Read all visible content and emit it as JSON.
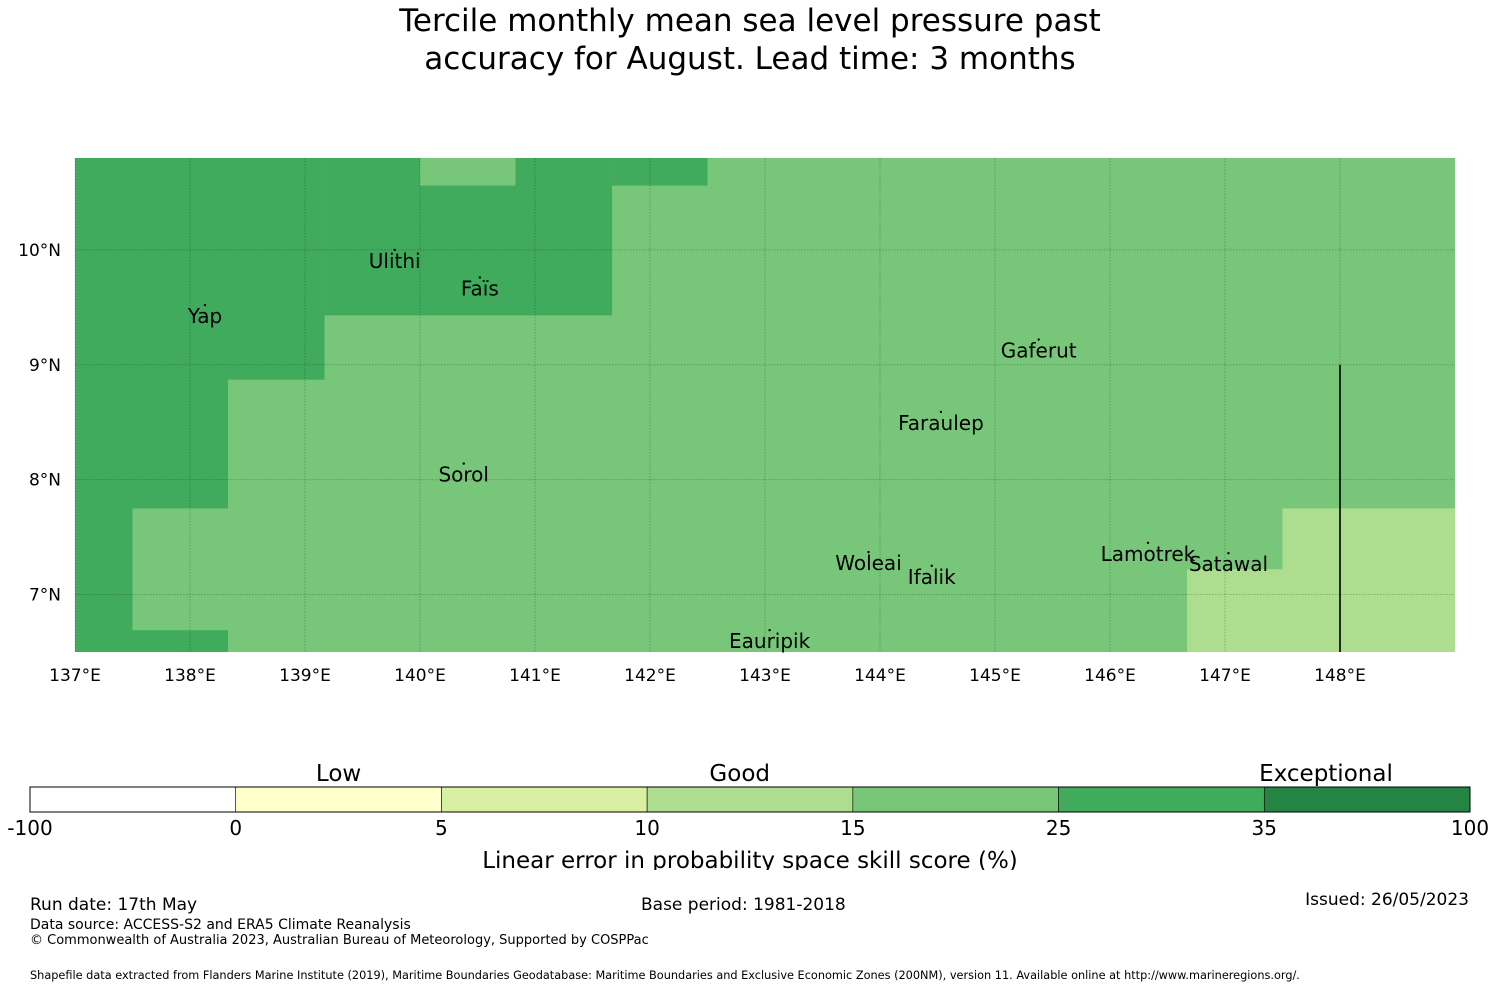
{
  "title": {
    "line1": "Tercile monthly mean sea level pressure past",
    "line2": "accuracy for August. Lead time: 3 months"
  },
  "map": {
    "lon_range": [
      137.0,
      149.0
    ],
    "lat_range": [
      6.5,
      10.8
    ],
    "lon_ticks": [
      {
        "value": 137,
        "label": "137°E"
      },
      {
        "value": 138,
        "label": "138°E"
      },
      {
        "value": 139,
        "label": "139°E"
      },
      {
        "value": 140,
        "label": "140°E"
      },
      {
        "value": 141,
        "label": "141°E"
      },
      {
        "value": 142,
        "label": "142°E"
      },
      {
        "value": 143,
        "label": "143°E"
      },
      {
        "value": 144,
        "label": "144°E"
      },
      {
        "value": 145,
        "label": "145°E"
      },
      {
        "value": 146,
        "label": "146°E"
      },
      {
        "value": 147,
        "label": "147°E"
      },
      {
        "value": 148,
        "label": "148°E"
      }
    ],
    "lat_ticks": [
      {
        "value": 10,
        "label": "10°N"
      },
      {
        "value": 9,
        "label": "9°N"
      },
      {
        "value": 8,
        "label": "8°N"
      },
      {
        "value": 7,
        "label": "7°N"
      }
    ],
    "gridlines": true,
    "skill_regions": [
      {
        "lon": [
          137.0,
          149.0
        ],
        "lat": [
          6.5,
          10.8
        ],
        "category": "15-25"
      },
      {
        "lon": [
          137.0,
          138.33
        ],
        "lat": [
          6.5,
          10.8
        ],
        "category": "25-35"
      },
      {
        "lon": [
          138.33,
          139.17
        ],
        "lat": [
          8.87,
          10.8
        ],
        "category": "25-35"
      },
      {
        "lon": [
          139.17,
          141.67
        ],
        "lat": [
          9.43,
          10.8
        ],
        "category": "25-35"
      },
      {
        "lon": [
          141.67,
          142.5
        ],
        "lat": [
          10.56,
          10.8
        ],
        "category": "25-35"
      },
      {
        "lon": [
          140.0,
          140.83
        ],
        "lat": [
          10.56,
          10.8
        ],
        "category": "15-25"
      },
      {
        "lon": [
          137.5,
          138.33
        ],
        "lat": [
          6.69,
          7.75
        ],
        "category": "15-25"
      },
      {
        "lon": [
          146.67,
          147.5
        ],
        "lat": [
          6.5,
          7.22
        ],
        "category": "10-15"
      },
      {
        "lon": [
          147.5,
          149.0
        ],
        "lat": [
          6.5,
          7.75
        ],
        "category": "10-15"
      }
    ],
    "boundary_line": {
      "lon": 148.0,
      "lat": [
        6.5,
        9.0
      ]
    },
    "islands": [
      {
        "name": "Yap",
        "lon": 138.13,
        "lat": 9.52
      },
      {
        "name": "Ulithi",
        "lon": 139.78,
        "lat": 10.0
      },
      {
        "name": "Faïs",
        "lon": 140.52,
        "lat": 9.76
      },
      {
        "name": "Gaferut",
        "lon": 145.38,
        "lat": 9.22
      },
      {
        "name": "Faraulep",
        "lon": 144.53,
        "lat": 8.59
      },
      {
        "name": "Sorol",
        "lon": 140.38,
        "lat": 8.14
      },
      {
        "name": "Woleai",
        "lon": 143.9,
        "lat": 7.37
      },
      {
        "name": "Ifalik",
        "lon": 144.45,
        "lat": 7.25
      },
      {
        "name": "Lamotrek",
        "lon": 146.33,
        "lat": 7.45
      },
      {
        "name": "Satawal",
        "lon": 147.03,
        "lat": 7.36
      },
      {
        "name": "Eauripik",
        "lon": 143.04,
        "lat": 6.69
      }
    ]
  },
  "legend": {
    "category_labels": [
      {
        "label": "Low",
        "at_boundary": 1.5
      },
      {
        "label": "Good",
        "at_boundary": 3.45
      },
      {
        "label": "Exceptional",
        "at_boundary": 6.3
      }
    ],
    "bins": [
      {
        "range": "-100-0",
        "color": "#ffffff"
      },
      {
        "range": "0-5",
        "color": "#ffffcc"
      },
      {
        "range": "5-10",
        "color": "#d9f0a3"
      },
      {
        "range": "10-15",
        "color": "#addd8e"
      },
      {
        "range": "15-25",
        "color": "#78c679"
      },
      {
        "range": "25-35",
        "color": "#41ab5d"
      },
      {
        "range": "35-100",
        "color": "#238443"
      }
    ],
    "ticks": [
      "-100",
      "0",
      "5",
      "10",
      "15",
      "25",
      "35",
      "100"
    ],
    "label": "Linear error in probability space skill score (%)"
  },
  "footer": {
    "run_date": "Run date: 17th May",
    "base_period": "Base period: 1981-2018",
    "issued": "Issued: 26/05/2023",
    "data_source": "Data source: ACCESS-S2 and ERA5 Climate Reanalysis",
    "copyright": "© Commonwealth of Australia 2023, Australian Bureau of Meteorology, Supported by COSPPac",
    "shapefile": "Shapefile data extracted from Flanders Marine Institute (2019), Maritime Boundaries Geodatabase: Maritime Boundaries and Exclusive Economic Zones (200NM), version 11. Available online at http://www.marineregions.org/."
  }
}
